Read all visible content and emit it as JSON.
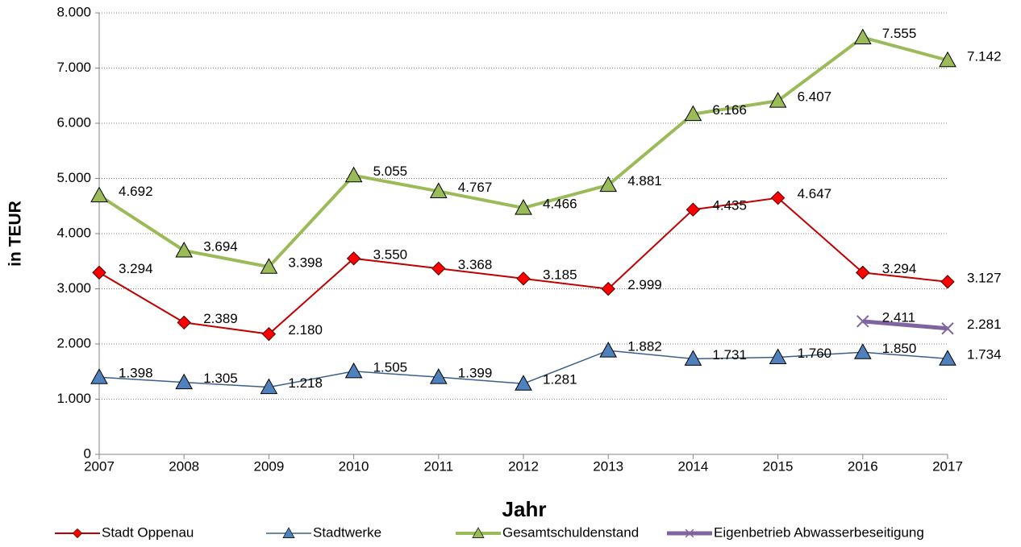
{
  "chart_data": {
    "type": "line",
    "x": [
      2007,
      2008,
      2009,
      2010,
      2011,
      2012,
      2013,
      2014,
      2015,
      2016,
      2017
    ],
    "xlim": [
      2007,
      2017
    ],
    "xticks": [
      2007,
      2008,
      2009,
      2010,
      2011,
      2012,
      2013,
      2014,
      2015,
      2016,
      2017
    ],
    "ylim": [
      0,
      8000
    ],
    "yticks": [
      0,
      {
        "value": 1000,
        "label": "1.000"
      },
      {
        "value": 2000,
        "label": "2.000"
      },
      {
        "value": 3000,
        "label": "3.000"
      },
      {
        "value": 4000,
        "label": "4.000"
      },
      {
        "value": 5000,
        "label": "5.000"
      },
      {
        "value": 6000,
        "label": "6.000"
      },
      {
        "value": 7000,
        "label": "7.000"
      },
      {
        "value": 8000,
        "label": "8.000"
      }
    ],
    "grid": true,
    "xlabel": "Jahr",
    "ylabel": "in TEUR",
    "legend": "bottom",
    "series": [
      {
        "name": "Stadt Oppenau",
        "color": "#c00000",
        "marker_color": "#ff0000",
        "marker": "diamond",
        "values": [
          3294,
          2389,
          2180,
          3550,
          3368,
          3185,
          2999,
          4435,
          4647,
          3294,
          3127
        ],
        "value_labels": [
          "3.294",
          "2.389",
          "2.180",
          "3.550",
          "3.368",
          "3.185",
          "2.999",
          "4.435",
          "4.647",
          "3.294",
          "3.127"
        ]
      },
      {
        "name": "Stadtwerke",
        "color": "#3a5f8a",
        "marker_color": "#4f81bd",
        "marker": "triangle",
        "values": [
          1398,
          1305,
          1218,
          1505,
          1399,
          1281,
          1882,
          1731,
          1760,
          1850,
          1734
        ],
        "value_labels": [
          "1.398",
          "1.305",
          "1.218",
          "1.505",
          "1.399",
          "1.281",
          "1.882",
          "1.731",
          "1.760",
          "1.850",
          "1.734"
        ]
      },
      {
        "name": "Gesamtschuldenstand",
        "color": "#9bbb59",
        "marker_color": "#9bbb59",
        "marker": "triangle",
        "values": [
          4692,
          3694,
          3398,
          5055,
          4767,
          4466,
          4881,
          6166,
          6407,
          7555,
          7142
        ],
        "value_labels": [
          "4.692",
          "3.694",
          "3.398",
          "5.055",
          "4.767",
          "4.466",
          "4.881",
          "6.166",
          "6.407",
          "7.555",
          "7.142"
        ]
      },
      {
        "name": "Eigenbetrieb Abwasserbeseitigung",
        "color": "#8064a2",
        "marker_color": "#8064a2",
        "marker": "x",
        "values": [
          null,
          null,
          null,
          null,
          null,
          null,
          null,
          null,
          null,
          2411,
          2281
        ],
        "value_labels": [
          null,
          null,
          null,
          null,
          null,
          null,
          null,
          null,
          null,
          "2.411",
          "2.281"
        ]
      }
    ]
  }
}
